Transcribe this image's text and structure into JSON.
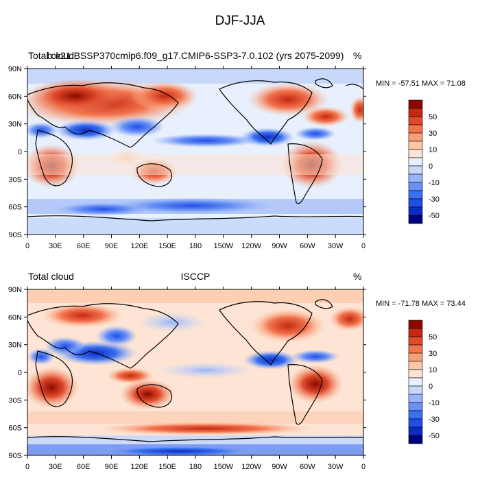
{
  "figure": {
    "title": "DJF-JJA"
  },
  "chart_data": [
    {
      "type": "heatmap",
      "title_left": "Total cloud",
      "title_center": "b.e21.BSSP370cmip6.f09_g17.CMIP6-SSP3-7.0.102 (yrs 2075-2099)",
      "title_right": "%",
      "x_tick_labels": [
        "0",
        "30E",
        "60E",
        "90E",
        "120E",
        "150E",
        "180",
        "150W",
        "120W",
        "90W",
        "60W",
        "30W",
        "0"
      ],
      "y_tick_labels": [
        "90N",
        "60N",
        "30N",
        "0",
        "30S",
        "60S",
        "90S"
      ],
      "xlim": [
        0,
        360
      ],
      "ylim": [
        -90,
        90
      ],
      "min": -57.51,
      "max": 71.08,
      "minmax_label": "MIN = -57.51 MAX =  71.08",
      "colorbar_labels": [
        "50",
        "30",
        "10",
        "0",
        "-10",
        "-30",
        "-50"
      ]
    },
    {
      "type": "heatmap",
      "title_left": "Total cloud",
      "title_center": "ISCCP",
      "title_right": "%",
      "x_tick_labels": [
        "0",
        "30E",
        "60E",
        "90E",
        "120E",
        "150E",
        "180",
        "150W",
        "120W",
        "90W",
        "60W",
        "30W",
        "0"
      ],
      "y_tick_labels": [
        "90N",
        "60N",
        "30N",
        "0",
        "30S",
        "60S",
        "90S"
      ],
      "xlim": [
        0,
        360
      ],
      "ylim": [
        -90,
        90
      ],
      "min": -71.78,
      "max": 73.44,
      "minmax_label": "MIN = -71.78 MAX =  73.44",
      "colorbar_labels": [
        "50",
        "30",
        "10",
        "0",
        "-10",
        "-30",
        "-50"
      ]
    }
  ],
  "colorbar": {
    "levels": [
      -60,
      -50,
      -40,
      -30,
      -20,
      -10,
      -5,
      0,
      5,
      10,
      20,
      30,
      40,
      50,
      60
    ],
    "colors": [
      "#00007f",
      "#0d2cc4",
      "#1f4fe6",
      "#3a6ff0",
      "#6990f5",
      "#98b4f8",
      "#c7d8fb",
      "#e8f0fd",
      "#fde4d4",
      "#fcc7a6",
      "#f89f78",
      "#f2744e",
      "#e04a2b",
      "#c62710",
      "#8a0a00"
    ]
  }
}
